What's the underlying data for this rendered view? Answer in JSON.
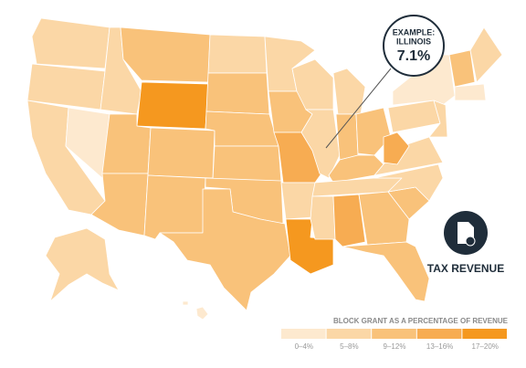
{
  "callout": {
    "line1": "EXAMPLE:",
    "line2": "ILLINOIS",
    "value": "7.1%"
  },
  "badge": {
    "label": "TAX REVENUE"
  },
  "legend": {
    "title": "BLOCK GRANT AS A PERCENTAGE OF REVENUE",
    "bins": [
      {
        "label": "0–4%",
        "color": "#fde9cf"
      },
      {
        "label": "5–8%",
        "color": "#fbd7a6"
      },
      {
        "label": "9–12%",
        "color": "#f9c27a"
      },
      {
        "label": "13–16%",
        "color": "#f7ac52"
      },
      {
        "label": "17–20%",
        "color": "#f5981f"
      }
    ]
  }
}
